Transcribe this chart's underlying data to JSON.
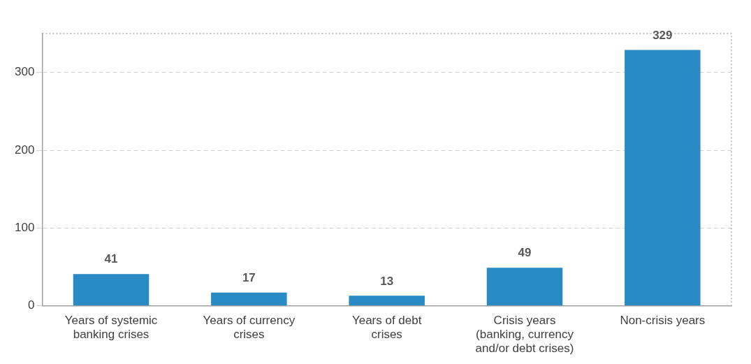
{
  "chart_data": {
    "type": "bar",
    "categories": [
      "Years of systemic banking crises",
      "Years of currency crises",
      "Years of debt crises",
      "Crisis years (banking, currency and/or debt crises)",
      "Non-crisis years"
    ],
    "values": [
      41,
      17,
      13,
      49,
      329
    ],
    "color": "#2a8ac4",
    "ylim": [
      0,
      350
    ],
    "yticks": [
      0,
      100,
      200,
      300
    ],
    "grid": "y",
    "data_labels": true,
    "legend": false
  }
}
